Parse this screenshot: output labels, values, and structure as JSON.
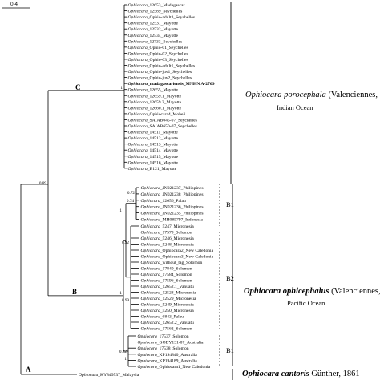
{
  "scale_label": "0.4",
  "species_groups": [
    {
      "name": "Ophiocara porocephala",
      "authority": "(Valenciennes, 1837)",
      "region": "Indian Ocean"
    },
    {
      "name": "Ophiocara ophicephalus",
      "authority": "(Valenciennes, 1837)",
      "region": "Pacific Ocean"
    },
    {
      "name": "Ophiocara cantoris",
      "authority": "Günther, 1861",
      "region": ""
    }
  ],
  "clade_labels": {
    "A": "A",
    "B": "B",
    "C": "C"
  },
  "subclade_labels": {
    "B1": "B1",
    "B2": "B2",
    "B1_lower": "B1"
  },
  "support_values": {
    "C": "1",
    "AB": "0.89",
    "B": "1",
    "b1": "1",
    "b1_sub": "0.74",
    "b1_sub2": "0.72",
    "b2": "0.92",
    "b2_sub": "0.99",
    "b3": "0.82",
    "b3_sub": "1"
  },
  "tips_C": [
    {
      "genus": "Ophiocara",
      "rest": "_12653_Madagascar",
      "bold": false
    },
    {
      "genus": "Ophiocara",
      "rest": "_12589_Seychelles",
      "bold": false
    },
    {
      "genus": "Ophiocara",
      "rest": "_Ophio-adult3_Seychelles",
      "bold": false
    },
    {
      "genus": "Ophiocara",
      "rest": "_12531_Mayotte",
      "bold": false
    },
    {
      "genus": "Ophiocara",
      "rest": "_12532_Mayotte",
      "bold": false
    },
    {
      "genus": "Ophiocara",
      "rest": "_12534_Mayotte",
      "bold": false
    },
    {
      "genus": "Ophiocara",
      "rest": "_12733_Seychelles",
      "bold": false
    },
    {
      "genus": "Ophiocara",
      "rest": "_Ophio-01_Seychelles",
      "bold": false
    },
    {
      "genus": "Ophiocara",
      "rest": "_Ophio-02_Seychelles",
      "bold": false
    },
    {
      "genus": "Ophiocara",
      "rest": "_Ophio-03_Seychelles",
      "bold": false
    },
    {
      "genus": "Ophiocara",
      "rest": "_Ophio-adult1_Seychelles",
      "bold": false
    },
    {
      "genus": "Ophiocara",
      "rest": "_Ophio-juv1_Seychelles",
      "bold": false
    },
    {
      "genus": "Ophiocara",
      "rest": "_Ophio-juv2_Seychelles",
      "bold": false
    },
    {
      "genus": "Ophiocara",
      "rest": "_madagascariensis_MNHN A-2709",
      "bold": true
    },
    {
      "genus": "Ophiocara",
      "rest": "_12655_Mayotte",
      "bold": false
    },
    {
      "genus": "Ophiocara",
      "rest": "_12659.1_Mayotte",
      "bold": false
    },
    {
      "genus": "Ophiocara",
      "rest": "_12659.2_Mayotte",
      "bold": false
    },
    {
      "genus": "Ophiocara",
      "rest": "_12660.1_Mayotte",
      "bold": false
    },
    {
      "genus": "Ophiocara",
      "rest": "_Ophiocara4_Moheli",
      "bold": false
    },
    {
      "genus": "Ophiocara",
      "rest": "_SAIAB645-07_Seychelles",
      "bold": false
    },
    {
      "genus": "Ophiocara",
      "rest": "_SAIAB650-07_Seychelles",
      "bold": false
    },
    {
      "genus": "Ophiocara",
      "rest": "_14511_Mayotte",
      "bold": false
    },
    {
      "genus": "Ophiocara",
      "rest": "_14512_Mayotte",
      "bold": false
    },
    {
      "genus": "Ophiocara",
      "rest": "_14513_Mayotte",
      "bold": false
    },
    {
      "genus": "Ophiocara",
      "rest": "_14514_Mayotte",
      "bold": false
    },
    {
      "genus": "Ophiocara",
      "rest": "_14515_Mayotte",
      "bold": false
    },
    {
      "genus": "Ophiocara",
      "rest": "_14516_Mayotte",
      "bold": false
    },
    {
      "genus": "Ophiocara",
      "rest": "_B121_Mayotte",
      "bold": false
    }
  ],
  "tips_B1": [
    {
      "genus": "Ophiocara",
      "rest": "_JN021237_Philippines"
    },
    {
      "genus": "Ophiocara",
      "rest": "_JN021238_Philippines"
    },
    {
      "genus": "Ophiocara",
      "rest": "_12656_Palau"
    },
    {
      "genus": "Ophiocara",
      "rest": "_JN021236_Philippines"
    },
    {
      "genus": "Ophiocara",
      "rest": "_JN021235_Philippines"
    },
    {
      "genus": "Ophiocara",
      "rest": "_MH085797_Indonesia"
    }
  ],
  "tips_B2": [
    {
      "genus": "Ophiocara",
      "rest": "_5247_Micronesia"
    },
    {
      "genus": "Ophiocara",
      "rest": "_17579_Solomon"
    },
    {
      "genus": "Ophiocara",
      "rest": "_5246_Micronesia"
    },
    {
      "genus": "Ophiocara",
      "rest": "_5248_Micronesia"
    },
    {
      "genus": "Ophiocara",
      "rest": "_Ophiocara2_New Caledonia"
    },
    {
      "genus": "Ophiocara",
      "rest": "_Ophiocara3_New Caledonia"
    },
    {
      "genus": "Ophiocara",
      "rest": "_without_tag_Solomon"
    },
    {
      "genus": "Ophiocara",
      "rest": "_17840_Solomon"
    },
    {
      "genus": "Ophiocara",
      "rest": "_17584_Solomon"
    },
    {
      "genus": "Ophiocara",
      "rest": "_17596_Solomon"
    },
    {
      "genus": "Ophiocara",
      "rest": "_12652.1_Vanuatu"
    },
    {
      "genus": "Ophiocara",
      "rest": "_12528_Micronesia"
    },
    {
      "genus": "Ophiocara",
      "rest": "_12529_Micronesia"
    },
    {
      "genus": "Ophiocara",
      "rest": "_5249_Micronesia"
    },
    {
      "genus": "Ophiocara",
      "rest": "_5250_Micronesia"
    },
    {
      "genus": "Ophiocara",
      "rest": "_6843_Palau"
    },
    {
      "genus": "Ophiocara",
      "rest": "_12652.2_Vanuatu"
    },
    {
      "genus": "Ophiocara",
      "rest": "_17562_Solomon"
    }
  ],
  "tips_B3": [
    {
      "genus": "Ophiocara",
      "rest": "_17537_Solomon"
    },
    {
      "genus": "Ophiocara",
      "rest": "_GOBY131-07_Australia"
    },
    {
      "genus": "Ophiocara",
      "rest": "_17538_Solomon"
    },
    {
      "genus": "Ophiocara",
      "rest": "_KP194840_Australia"
    },
    {
      "genus": "Ophiocara",
      "rest": "_KP194189_Australia"
    },
    {
      "genus": "Ophiocara",
      "rest": "_Ophiocara1_New Caledonia"
    }
  ],
  "tip_A": {
    "genus": "Ophiocara",
    "rest": "_KY849537_Malaysia"
  }
}
